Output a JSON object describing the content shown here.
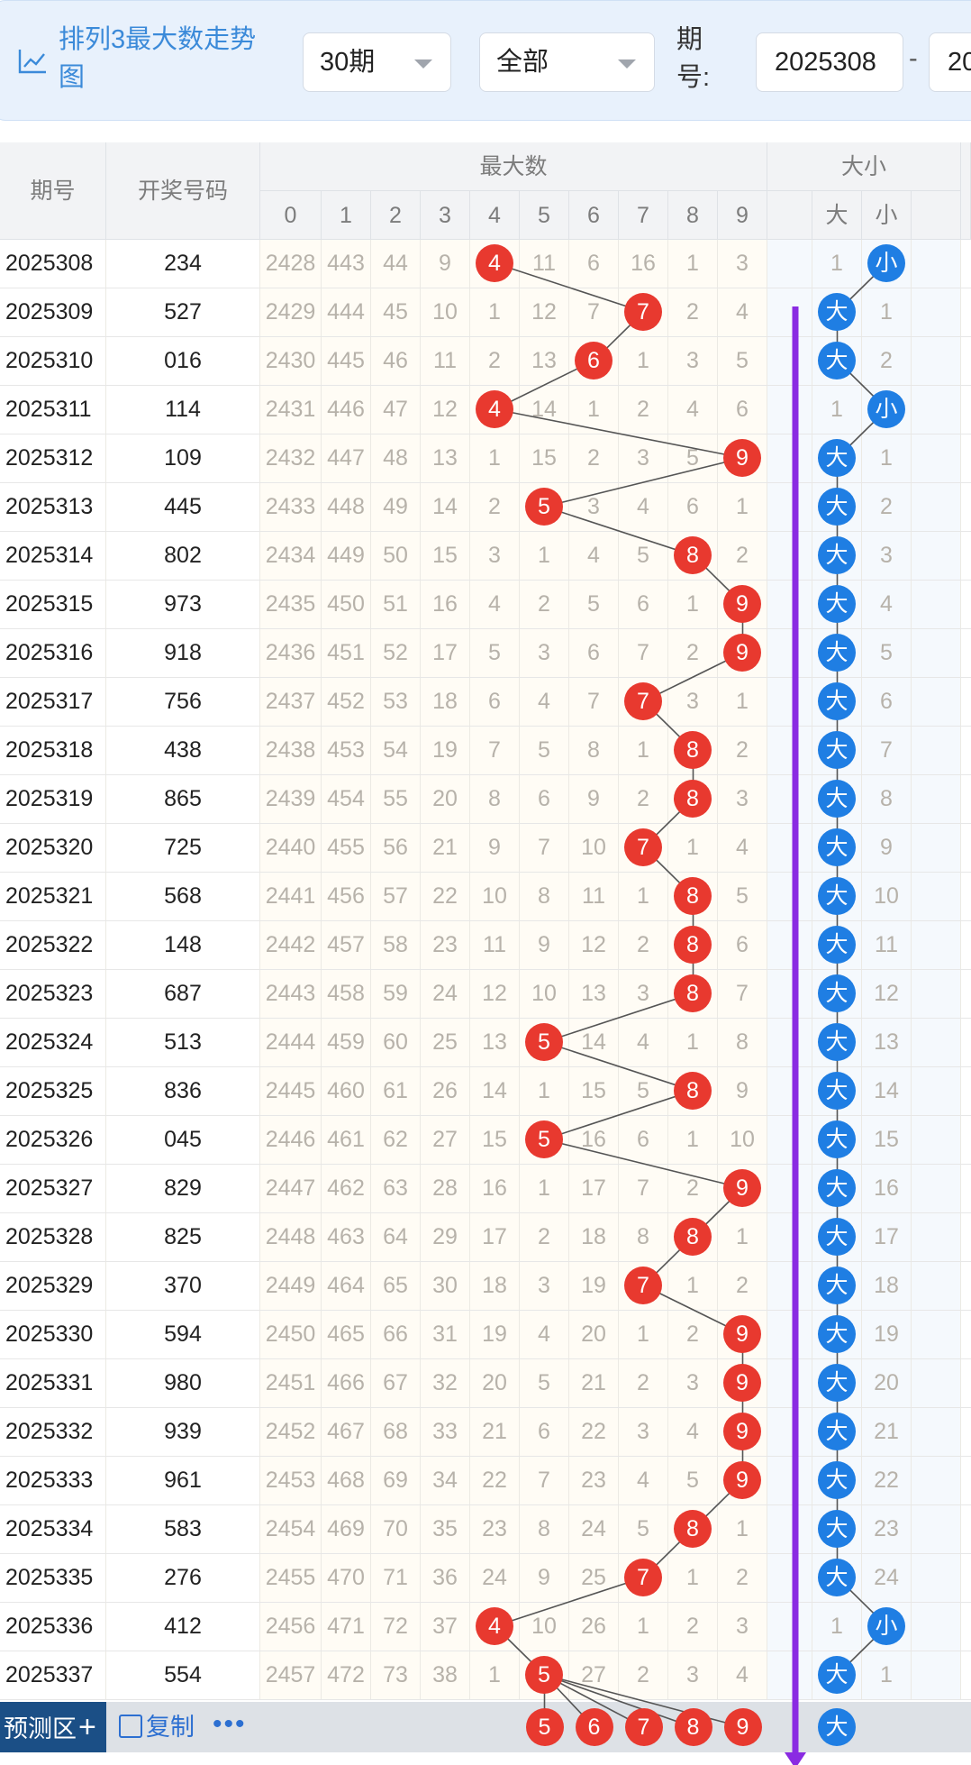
{
  "filter_bar": {
    "title": "排列3最大数走势图",
    "period_select": "30期",
    "type_select": "全部",
    "issue_label": "期号:",
    "issue_from": "2025308",
    "range_separator": "-",
    "issue_to": "20"
  },
  "table": {
    "col_issue": "期号",
    "col_number": "开奖号码",
    "group_max": "最大数",
    "group_size": "大小",
    "digits": [
      "0",
      "1",
      "2",
      "3",
      "4",
      "5",
      "6",
      "7",
      "8",
      "9"
    ],
    "size_labels": [
      "大",
      "小"
    ],
    "rows": [
      {
        "issue": "2025308",
        "number": "234",
        "max": 4,
        "miss": [
          2428,
          443,
          44,
          9,
          null,
          11,
          6,
          16,
          1,
          3
        ],
        "size": "小",
        "size_miss": [
          1,
          null
        ]
      },
      {
        "issue": "2025309",
        "number": "527",
        "max": 7,
        "miss": [
          2429,
          444,
          45,
          10,
          1,
          12,
          7,
          null,
          2,
          4
        ],
        "size": "大",
        "size_miss": [
          null,
          1
        ]
      },
      {
        "issue": "2025310",
        "number": "016",
        "max": 6,
        "miss": [
          2430,
          445,
          46,
          11,
          2,
          13,
          null,
          1,
          3,
          5
        ],
        "size": "大",
        "size_miss": [
          null,
          2
        ]
      },
      {
        "issue": "2025311",
        "number": "114",
        "max": 4,
        "miss": [
          2431,
          446,
          47,
          12,
          null,
          14,
          1,
          2,
          4,
          6
        ],
        "size": "小",
        "size_miss": [
          1,
          null
        ]
      },
      {
        "issue": "2025312",
        "number": "109",
        "max": 9,
        "miss": [
          2432,
          447,
          48,
          13,
          1,
          15,
          2,
          3,
          5,
          null
        ],
        "size": "大",
        "size_miss": [
          null,
          1
        ]
      },
      {
        "issue": "2025313",
        "number": "445",
        "max": 5,
        "miss": [
          2433,
          448,
          49,
          14,
          2,
          null,
          3,
          4,
          6,
          1
        ],
        "size": "大",
        "size_miss": [
          null,
          2
        ]
      },
      {
        "issue": "2025314",
        "number": "802",
        "max": 8,
        "miss": [
          2434,
          449,
          50,
          15,
          3,
          1,
          4,
          5,
          null,
          2
        ],
        "size": "大",
        "size_miss": [
          null,
          3
        ]
      },
      {
        "issue": "2025315",
        "number": "973",
        "max": 9,
        "miss": [
          2435,
          450,
          51,
          16,
          4,
          2,
          5,
          6,
          1,
          null
        ],
        "size": "大",
        "size_miss": [
          null,
          4
        ]
      },
      {
        "issue": "2025316",
        "number": "918",
        "max": 9,
        "miss": [
          2436,
          451,
          52,
          17,
          5,
          3,
          6,
          7,
          2,
          null
        ],
        "size": "大",
        "size_miss": [
          null,
          5
        ]
      },
      {
        "issue": "2025317",
        "number": "756",
        "max": 7,
        "miss": [
          2437,
          452,
          53,
          18,
          6,
          4,
          7,
          null,
          3,
          1
        ],
        "size": "大",
        "size_miss": [
          null,
          6
        ]
      },
      {
        "issue": "2025318",
        "number": "438",
        "max": 8,
        "miss": [
          2438,
          453,
          54,
          19,
          7,
          5,
          8,
          1,
          null,
          2
        ],
        "size": "大",
        "size_miss": [
          null,
          7
        ]
      },
      {
        "issue": "2025319",
        "number": "865",
        "max": 8,
        "miss": [
          2439,
          454,
          55,
          20,
          8,
          6,
          9,
          2,
          null,
          3
        ],
        "size": "大",
        "size_miss": [
          null,
          8
        ]
      },
      {
        "issue": "2025320",
        "number": "725",
        "max": 7,
        "miss": [
          2440,
          455,
          56,
          21,
          9,
          7,
          10,
          null,
          1,
          4
        ],
        "size": "大",
        "size_miss": [
          null,
          9
        ]
      },
      {
        "issue": "2025321",
        "number": "568",
        "max": 8,
        "miss": [
          2441,
          456,
          57,
          22,
          10,
          8,
          11,
          1,
          null,
          5
        ],
        "size": "大",
        "size_miss": [
          null,
          10
        ]
      },
      {
        "issue": "2025322",
        "number": "148",
        "max": 8,
        "miss": [
          2442,
          457,
          58,
          23,
          11,
          9,
          12,
          2,
          null,
          6
        ],
        "size": "大",
        "size_miss": [
          null,
          11
        ]
      },
      {
        "issue": "2025323",
        "number": "687",
        "max": 8,
        "miss": [
          2443,
          458,
          59,
          24,
          12,
          10,
          13,
          3,
          null,
          7
        ],
        "size": "大",
        "size_miss": [
          null,
          12
        ]
      },
      {
        "issue": "2025324",
        "number": "513",
        "max": 5,
        "miss": [
          2444,
          459,
          60,
          25,
          13,
          null,
          14,
          4,
          1,
          8
        ],
        "size": "大",
        "size_miss": [
          null,
          13
        ]
      },
      {
        "issue": "2025325",
        "number": "836",
        "max": 8,
        "miss": [
          2445,
          460,
          61,
          26,
          14,
          1,
          15,
          5,
          null,
          9
        ],
        "size": "大",
        "size_miss": [
          null,
          14
        ]
      },
      {
        "issue": "2025326",
        "number": "045",
        "max": 5,
        "miss": [
          2446,
          461,
          62,
          27,
          15,
          null,
          16,
          6,
          1,
          10
        ],
        "size": "大",
        "size_miss": [
          null,
          15
        ]
      },
      {
        "issue": "2025327",
        "number": "829",
        "max": 9,
        "miss": [
          2447,
          462,
          63,
          28,
          16,
          1,
          17,
          7,
          2,
          null
        ],
        "size": "大",
        "size_miss": [
          null,
          16
        ]
      },
      {
        "issue": "2025328",
        "number": "825",
        "max": 8,
        "miss": [
          2448,
          463,
          64,
          29,
          17,
          2,
          18,
          8,
          null,
          1
        ],
        "size": "大",
        "size_miss": [
          null,
          17
        ]
      },
      {
        "issue": "2025329",
        "number": "370",
        "max": 7,
        "miss": [
          2449,
          464,
          65,
          30,
          18,
          3,
          19,
          null,
          1,
          2
        ],
        "size": "大",
        "size_miss": [
          null,
          18
        ]
      },
      {
        "issue": "2025330",
        "number": "594",
        "max": 9,
        "miss": [
          2450,
          465,
          66,
          31,
          19,
          4,
          20,
          1,
          2,
          null
        ],
        "size": "大",
        "size_miss": [
          null,
          19
        ]
      },
      {
        "issue": "2025331",
        "number": "980",
        "max": 9,
        "miss": [
          2451,
          466,
          67,
          32,
          20,
          5,
          21,
          2,
          3,
          null
        ],
        "size": "大",
        "size_miss": [
          null,
          20
        ]
      },
      {
        "issue": "2025332",
        "number": "939",
        "max": 9,
        "miss": [
          2452,
          467,
          68,
          33,
          21,
          6,
          22,
          3,
          4,
          null
        ],
        "size": "大",
        "size_miss": [
          null,
          21
        ]
      },
      {
        "issue": "2025333",
        "number": "961",
        "max": 9,
        "miss": [
          2453,
          468,
          69,
          34,
          22,
          7,
          23,
          4,
          5,
          null
        ],
        "size": "大",
        "size_miss": [
          null,
          22
        ]
      },
      {
        "issue": "2025334",
        "number": "583",
        "max": 8,
        "miss": [
          2454,
          469,
          70,
          35,
          23,
          8,
          24,
          5,
          null,
          1
        ],
        "size": "大",
        "size_miss": [
          null,
          23
        ]
      },
      {
        "issue": "2025335",
        "number": "276",
        "max": 7,
        "miss": [
          2455,
          470,
          71,
          36,
          24,
          9,
          25,
          null,
          1,
          2
        ],
        "size": "大",
        "size_miss": [
          null,
          24
        ]
      },
      {
        "issue": "2025336",
        "number": "412",
        "max": 4,
        "miss": [
          2456,
          471,
          72,
          37,
          null,
          10,
          26,
          1,
          2,
          3
        ],
        "size": "小",
        "size_miss": [
          1,
          null
        ]
      },
      {
        "issue": "2025337",
        "number": "554",
        "max": 5,
        "miss": [
          2457,
          472,
          73,
          38,
          1,
          null,
          27,
          2,
          3,
          4
        ],
        "size": "大",
        "size_miss": [
          null,
          1
        ]
      }
    ]
  },
  "predict": {
    "label": "预测区",
    "plus": "+",
    "copy": "复制",
    "more": "•••",
    "max_balls": [
      5,
      6,
      7,
      8,
      9
    ],
    "size_ball": "大"
  },
  "colors": {
    "red_ball": "#e8392f",
    "blue_ball": "#1f7ee3",
    "trend_arrow": "#8a2be2",
    "title_blue": "#3b8ad9"
  }
}
